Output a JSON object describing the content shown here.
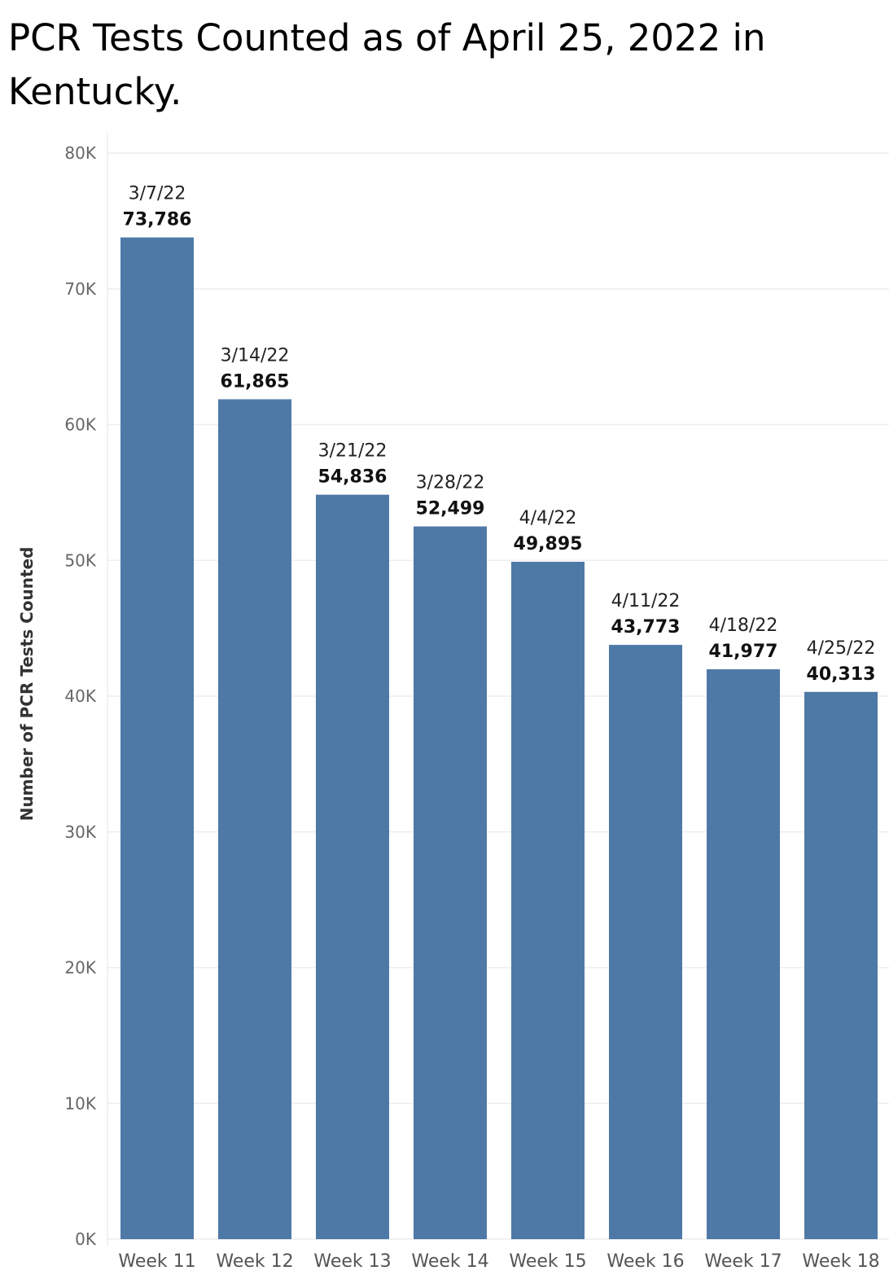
{
  "chart_data": {
    "type": "bar",
    "title": "PCR Tests Counted as of April 25, 2022 in Kentucky.",
    "xlabel": "",
    "ylabel": "Number of PCR Tests Counted",
    "categories": [
      "Week 11",
      "Week 12",
      "Week 13",
      "Week 14",
      "Week 15",
      "Week 16",
      "Week 17",
      "Week 18"
    ],
    "dates": [
      "3/7/22",
      "3/14/22",
      "3/21/22",
      "3/28/22",
      "4/4/22",
      "4/11/22",
      "4/18/22",
      "4/25/22"
    ],
    "values": [
      73786,
      61865,
      54836,
      52499,
      49895,
      43773,
      41977,
      40313
    ],
    "value_labels": [
      "73,786",
      "61,865",
      "54,836",
      "52,499",
      "49,895",
      "43,773",
      "41,977",
      "40,313"
    ],
    "y_ticks": [
      0,
      10000,
      20000,
      30000,
      40000,
      50000,
      60000,
      70000,
      80000
    ],
    "y_tick_labels": [
      "0K",
      "10K",
      "20K",
      "30K",
      "40K",
      "50K",
      "60K",
      "70K",
      "80K"
    ],
    "ylim": [
      0,
      80000
    ],
    "grid": true,
    "bar_color": "#4e79a7"
  }
}
